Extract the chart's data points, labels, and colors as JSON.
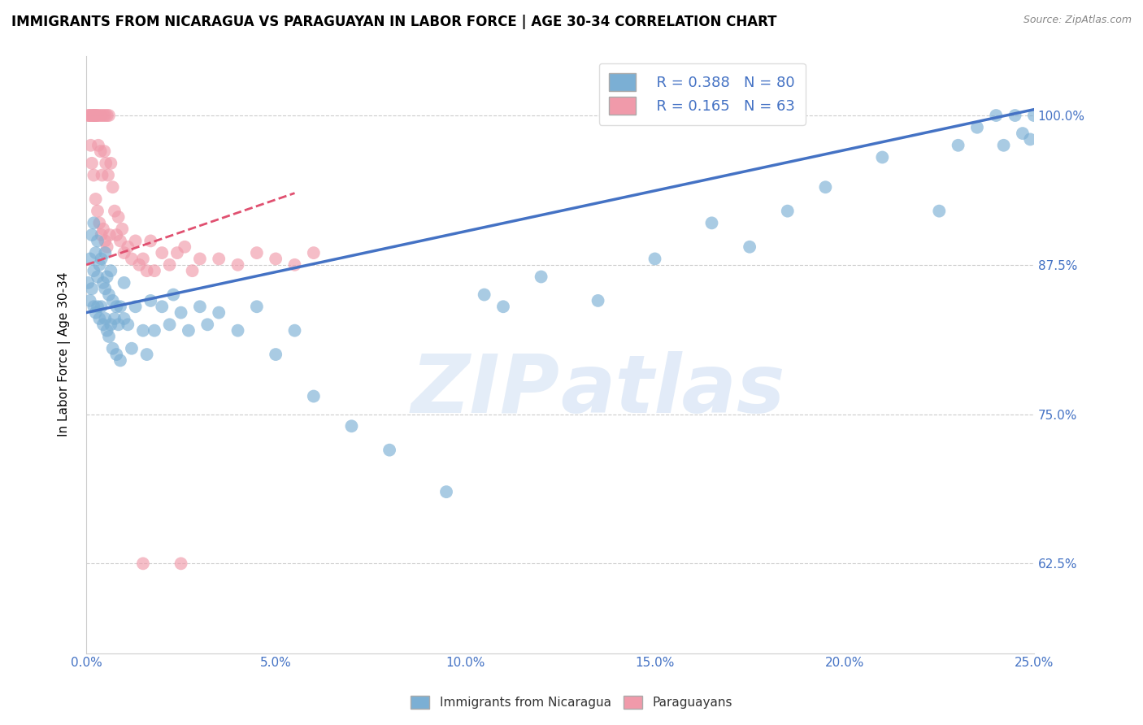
{
  "title": "IMMIGRANTS FROM NICARAGUA VS PARAGUAYAN IN LABOR FORCE | AGE 30-34 CORRELATION CHART",
  "source": "Source: ZipAtlas.com",
  "xlabel_vals": [
    0.0,
    5.0,
    10.0,
    15.0,
    20.0,
    25.0
  ],
  "ylabel_vals": [
    62.5,
    75.0,
    87.5,
    100.0
  ],
  "ylabel_label": "In Labor Force | Age 30-34",
  "legend_blue_r": "R = 0.388",
  "legend_blue_n": "N = 80",
  "legend_pink_r": "R = 0.165",
  "legend_pink_n": "N = 63",
  "legend_blue_label": "Immigrants from Nicaragua",
  "legend_pink_label": "Paraguayans",
  "blue_color": "#7BAFD4",
  "pink_color": "#F09AAA",
  "blue_line_color": "#4472C4",
  "pink_line_color": "#E05070",
  "watermark_zip": "ZIP",
  "watermark_atlas": "atlas",
  "xlim": [
    0,
    25
  ],
  "ylim": [
    55,
    105
  ],
  "blue_line_x": [
    0,
    25
  ],
  "blue_line_y": [
    83.5,
    100.5
  ],
  "pink_line_x": [
    0,
    5.5
  ],
  "pink_line_y": [
    87.5,
    93.5
  ],
  "scatter_blue_x": [
    0.05,
    0.1,
    0.1,
    0.15,
    0.15,
    0.2,
    0.2,
    0.2,
    0.25,
    0.25,
    0.3,
    0.3,
    0.3,
    0.35,
    0.35,
    0.4,
    0.4,
    0.45,
    0.45,
    0.5,
    0.5,
    0.5,
    0.55,
    0.55,
    0.6,
    0.6,
    0.65,
    0.65,
    0.7,
    0.7,
    0.75,
    0.8,
    0.8,
    0.85,
    0.9,
    0.9,
    1.0,
    1.0,
    1.1,
    1.2,
    1.3,
    1.5,
    1.6,
    1.7,
    1.8,
    2.0,
    2.2,
    2.3,
    2.5,
    2.7,
    3.0,
    3.2,
    3.5,
    4.0,
    4.5,
    5.0,
    5.5,
    6.0,
    7.0,
    8.0,
    9.5,
    10.5,
    11.0,
    12.0,
    13.5,
    15.0,
    16.5,
    17.5,
    18.5,
    19.5,
    21.0,
    22.5,
    23.0,
    23.5,
    24.0,
    24.2,
    24.5,
    24.7,
    24.9,
    25.0
  ],
  "scatter_blue_y": [
    86.0,
    84.5,
    88.0,
    85.5,
    90.0,
    84.0,
    87.0,
    91.0,
    83.5,
    88.5,
    84.0,
    86.5,
    89.5,
    83.0,
    87.5,
    84.0,
    88.0,
    82.5,
    86.0,
    83.0,
    85.5,
    88.5,
    82.0,
    86.5,
    81.5,
    85.0,
    82.5,
    87.0,
    80.5,
    84.5,
    83.0,
    80.0,
    84.0,
    82.5,
    79.5,
    84.0,
    83.0,
    86.0,
    82.5,
    80.5,
    84.0,
    82.0,
    80.0,
    84.5,
    82.0,
    84.0,
    82.5,
    85.0,
    83.5,
    82.0,
    84.0,
    82.5,
    83.5,
    82.0,
    84.0,
    80.0,
    82.0,
    76.5,
    74.0,
    72.0,
    68.5,
    85.0,
    84.0,
    86.5,
    84.5,
    88.0,
    91.0,
    89.0,
    92.0,
    94.0,
    96.5,
    92.0,
    97.5,
    99.0,
    100.0,
    97.5,
    100.0,
    98.5,
    98.0,
    100.0
  ],
  "scatter_pink_x": [
    0.05,
    0.08,
    0.1,
    0.12,
    0.15,
    0.15,
    0.18,
    0.2,
    0.2,
    0.22,
    0.25,
    0.25,
    0.28,
    0.3,
    0.3,
    0.32,
    0.35,
    0.35,
    0.38,
    0.4,
    0.4,
    0.42,
    0.45,
    0.45,
    0.48,
    0.5,
    0.5,
    0.52,
    0.55,
    0.55,
    0.58,
    0.6,
    0.62,
    0.65,
    0.7,
    0.75,
    0.8,
    0.85,
    0.9,
    0.95,
    1.0,
    1.1,
    1.2,
    1.3,
    1.4,
    1.5,
    1.6,
    1.7,
    1.8,
    2.0,
    2.2,
    2.4,
    2.6,
    2.8,
    3.0,
    3.5,
    4.0,
    4.5,
    5.0,
    5.5,
    6.0,
    1.5,
    2.5
  ],
  "scatter_pink_y": [
    100.0,
    100.0,
    100.0,
    97.5,
    100.0,
    96.0,
    100.0,
    100.0,
    95.0,
    100.0,
    100.0,
    93.0,
    100.0,
    100.0,
    92.0,
    97.5,
    100.0,
    91.0,
    97.0,
    100.0,
    90.0,
    95.0,
    100.0,
    90.5,
    97.0,
    100.0,
    89.5,
    96.0,
    100.0,
    89.0,
    95.0,
    100.0,
    90.0,
    96.0,
    94.0,
    92.0,
    90.0,
    91.5,
    89.5,
    90.5,
    88.5,
    89.0,
    88.0,
    89.5,
    87.5,
    88.0,
    87.0,
    89.5,
    87.0,
    88.5,
    87.5,
    88.5,
    89.0,
    87.0,
    88.0,
    88.0,
    87.5,
    88.5,
    88.0,
    87.5,
    88.5,
    62.5,
    62.5
  ]
}
